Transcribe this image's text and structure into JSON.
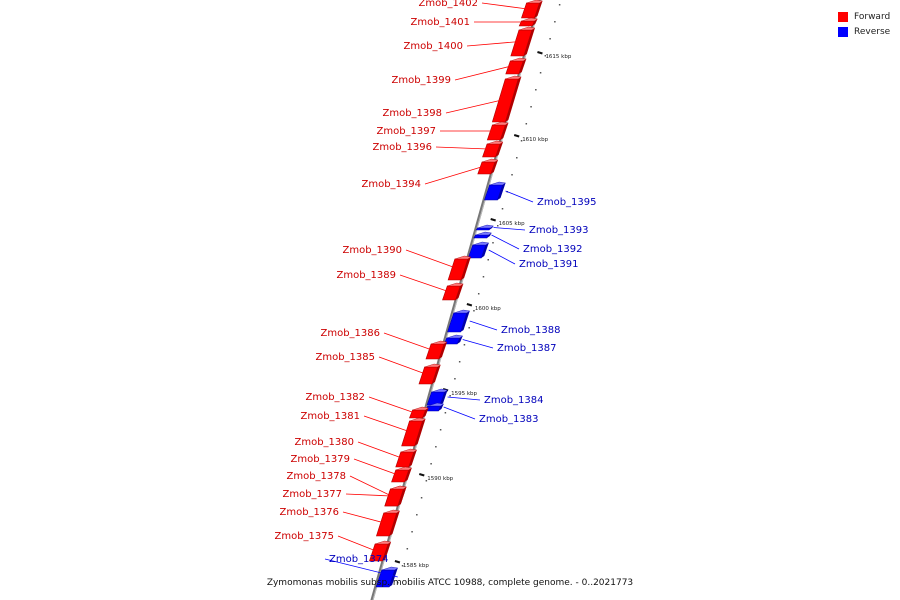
{
  "legend": {
    "forward_label": "Forward",
    "reverse_label": "Reverse",
    "forward_color": "#ff0000",
    "reverse_color": "#0000ff"
  },
  "caption": "Zymomonas mobilis subsp. mobilis ATCC 10988, complete genome. - 0..2021773",
  "ticks": [
    {
      "label": "1615 kbp"
    },
    {
      "label": "1610 kbp"
    },
    {
      "label": "1605 kbp"
    },
    {
      "label": "1600 kbp"
    },
    {
      "label": "1595 kbp"
    },
    {
      "label": "1590 kbp"
    },
    {
      "label": "1585 kbp"
    }
  ],
  "genes": [
    {
      "name": "Zmob_1402",
      "strand": "forward"
    },
    {
      "name": "Zmob_1401",
      "strand": "forward"
    },
    {
      "name": "Zmob_1400",
      "strand": "forward"
    },
    {
      "name": "Zmob_1399",
      "strand": "forward"
    },
    {
      "name": "Zmob_1398",
      "strand": "forward"
    },
    {
      "name": "Zmob_1397",
      "strand": "forward"
    },
    {
      "name": "Zmob_1396",
      "strand": "forward"
    },
    {
      "name": "Zmob_1394",
      "strand": "forward"
    },
    {
      "name": "Zmob_1395",
      "strand": "reverse"
    },
    {
      "name": "Zmob_1393",
      "strand": "reverse"
    },
    {
      "name": "Zmob_1392",
      "strand": "reverse"
    },
    {
      "name": "Zmob_1391",
      "strand": "reverse"
    },
    {
      "name": "Zmob_1390",
      "strand": "forward"
    },
    {
      "name": "Zmob_1389",
      "strand": "forward"
    },
    {
      "name": "Zmob_1388",
      "strand": "reverse"
    },
    {
      "name": "Zmob_1387",
      "strand": "reverse"
    },
    {
      "name": "Zmob_1386",
      "strand": "forward"
    },
    {
      "name": "Zmob_1385",
      "strand": "forward"
    },
    {
      "name": "Zmob_1384",
      "strand": "reverse"
    },
    {
      "name": "Zmob_1383",
      "strand": "reverse"
    },
    {
      "name": "Zmob_1382",
      "strand": "forward"
    },
    {
      "name": "Zmob_1381",
      "strand": "forward"
    },
    {
      "name": "Zmob_1380",
      "strand": "forward"
    },
    {
      "name": "Zmob_1379",
      "strand": "forward"
    },
    {
      "name": "Zmob_1378",
      "strand": "forward"
    },
    {
      "name": "Zmob_1377",
      "strand": "forward"
    },
    {
      "name": "Zmob_1376",
      "strand": "forward"
    },
    {
      "name": "Zmob_1375",
      "strand": "forward"
    },
    {
      "name": "Zmob_1374",
      "strand": "reverse"
    }
  ]
}
